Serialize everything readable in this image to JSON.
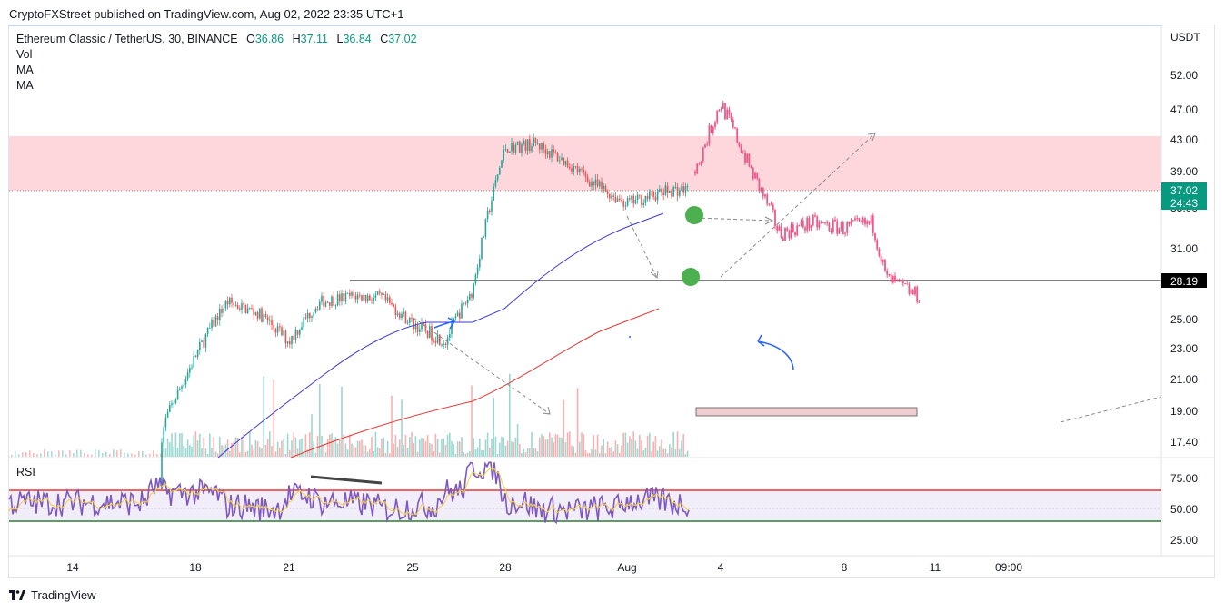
{
  "publisher": "CryptoFXStreet published on TradingView.com, Aug 02, 2022 23:35 UTC+1",
  "legend": {
    "symbol": "Ethereum Classic / TetherUS, 30, BINANCE",
    "o_label": "O",
    "o_value": "36.86",
    "h_label": "H",
    "h_value": "37.11",
    "l_label": "L",
    "l_value": "36.84",
    "c_label": "C",
    "c_value": "37.02",
    "indicators": [
      "Vol",
      "MA",
      "MA"
    ]
  },
  "rsi_label": "RSI",
  "brand": "TradingView",
  "colors": {
    "up": "#26a69a",
    "down": "#ef5350",
    "projection": "#e8598a",
    "ma_fast": "#3a3ad8",
    "ma_slow": "#e53935",
    "zone": "#fdd7dc",
    "rsi_line": "#7e57c2",
    "rsi_signal": "#f4d03f",
    "rsi_upper": "#e53935",
    "rsi_lower": "#2e7d32"
  },
  "chart_data": {
    "type": "candlestick",
    "currency_label": "USDT",
    "price_ticks": [
      "52.00",
      "47.00",
      "43.00",
      "39.00",
      "35.00",
      "31.00",
      "25.00",
      "23.00",
      "21.00",
      "19.00",
      "17.40"
    ],
    "x_ticks": [
      "14",
      "18",
      "21",
      "25",
      "28",
      "Aug",
      "4",
      "8",
      "11",
      "09:00"
    ],
    "current_price": {
      "value": "37.02",
      "countdown": "24:43"
    },
    "horizontal_level": {
      "value": "28.19"
    },
    "resistance_zone": {
      "low": 37.3,
      "high": 43.5
    },
    "price_path": [
      {
        "x": "12",
        "close": 15.2
      },
      {
        "x": "16",
        "close": 16.2
      },
      {
        "x": "17",
        "close": 18.5
      },
      {
        "x": "18",
        "close": 22.5
      },
      {
        "x": "19",
        "close": 26.5
      },
      {
        "x": "20",
        "close": 25.5
      },
      {
        "x": "21",
        "close": 23.5
      },
      {
        "x": "22",
        "close": 26.5
      },
      {
        "x": "23",
        "close": 27.0
      },
      {
        "x": "24",
        "close": 26.8
      },
      {
        "x": "25",
        "close": 24.7
      },
      {
        "x": "26",
        "close": 23.5
      },
      {
        "x": "27",
        "close": 27.5
      },
      {
        "x": "28",
        "close": 42.0
      },
      {
        "x": "29",
        "close": 42.5
      },
      {
        "x": "30",
        "close": 40.0
      },
      {
        "x": "31",
        "close": 37.5
      },
      {
        "x": "Aug",
        "close": 35.5
      },
      {
        "x": "2",
        "close": 37.0
      }
    ],
    "projection_path": [
      {
        "x": "3",
        "close": 39.0
      },
      {
        "x": "4",
        "close": 48.0
      },
      {
        "x": "5",
        "close": 39.5
      },
      {
        "x": "6",
        "close": 32.5
      },
      {
        "x": "7",
        "close": 33.5
      },
      {
        "x": "8",
        "close": 33.0
      },
      {
        "x": "9",
        "close": 33.5
      },
      {
        "x": "10",
        "close": 28.5
      },
      {
        "x": "10.5",
        "close": 27.0
      }
    ],
    "rsi": {
      "ticks": [
        "75.00",
        "50.00",
        "25.00"
      ],
      "upper": 70,
      "lower": 45
    }
  }
}
